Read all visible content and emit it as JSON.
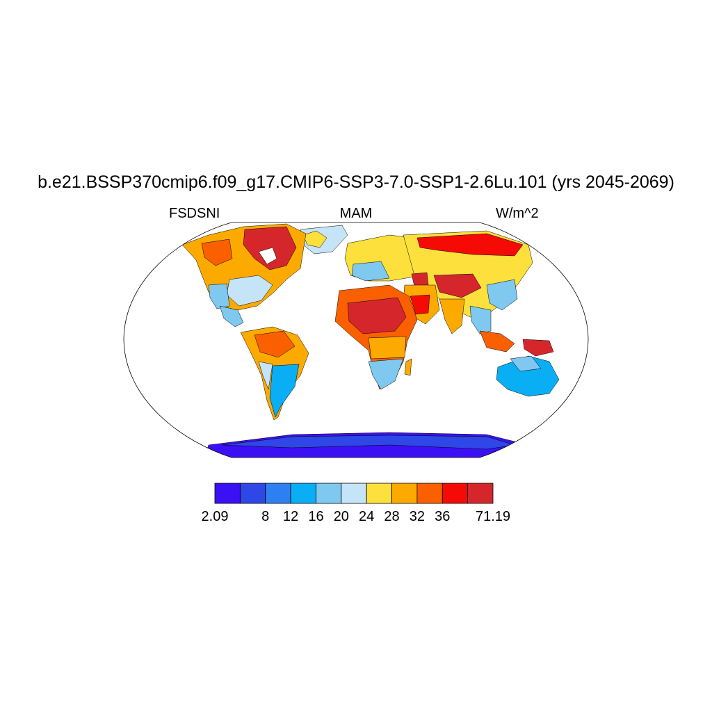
{
  "title": "b.e21.BSSP370cmip6.f09_g17.CMIP6-SSP3-7.0-SSP1-2.6Lu.101 (yrs 2045-2069)",
  "left_label": "FSDSNI",
  "center_label": "MAM",
  "right_label": "W/m^2",
  "colorbar": {
    "colors": [
      "#3b10f5",
      "#2e47e6",
      "#2e7ff2",
      "#0aaef5",
      "#7fc8ef",
      "#c6e4f7",
      "#fee03c",
      "#fcaa00",
      "#fb6000",
      "#f60a05",
      "#d5272b"
    ],
    "labels": [
      "2.09",
      "8",
      "12",
      "16",
      "20",
      "24",
      "28",
      "32",
      "36",
      "71.19"
    ],
    "label_boundaries": [
      0,
      2,
      3,
      4,
      5,
      6,
      7,
      8,
      9,
      11
    ]
  },
  "ocean_color": "#ffffff",
  "region_colors": {
    "antarctica_outer": "#3b10f5",
    "antarctica_inner": "#2e47e6",
    "antarctica_edge": "#2e7ff2",
    "cool_light": "#c6e4f7",
    "cool_mid": "#7fc8ef",
    "cool_blue": "#0aaef5",
    "warm_yellow": "#fee03c",
    "warm_orange": "#fcaa00",
    "hot_orange": "#fb6000",
    "hot_red": "#f60a05",
    "hottest": "#d5272b"
  }
}
